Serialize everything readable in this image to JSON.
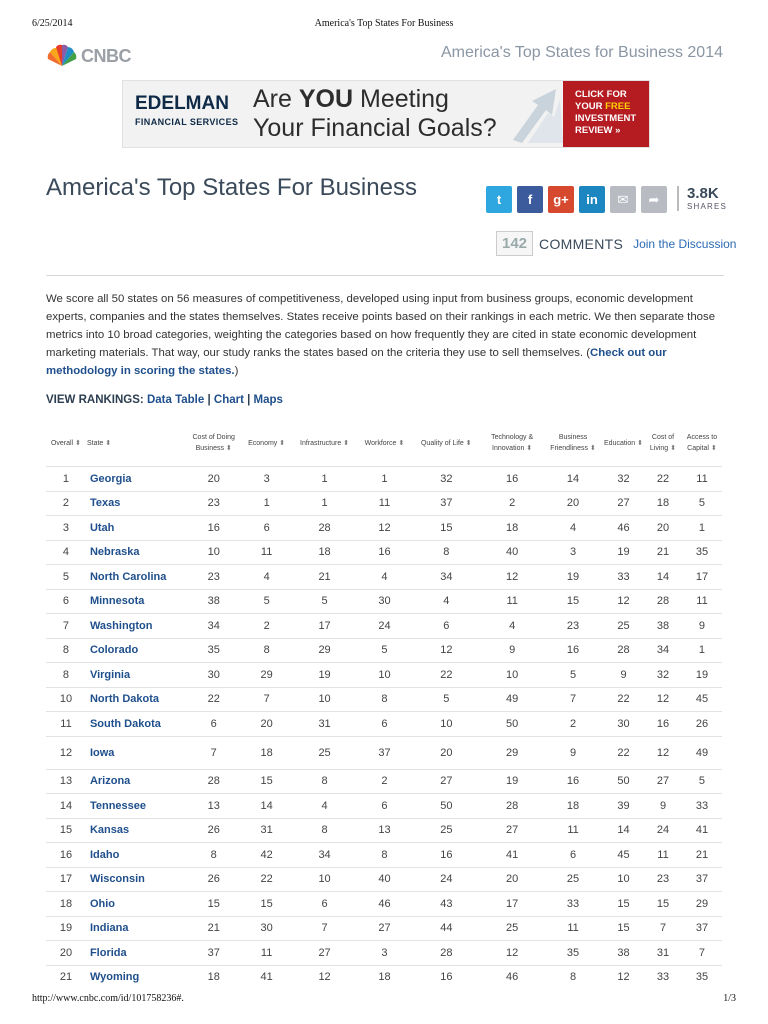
{
  "print_header": {
    "date": "6/25/2014",
    "title": "America's Top States For Business"
  },
  "print_footer": {
    "url": "http://www.cnbc.com/id/101758236#.",
    "page": "1/3"
  },
  "logo": {
    "text": "CNBC"
  },
  "site_title": "America's Top States for Business 2014",
  "ad": {
    "brand": "EDELMAN",
    "brand_sub": "FINANCIAL SERVICES",
    "headline_pre": "Are ",
    "headline_bold": "YOU",
    "headline_post": " Meeting",
    "headline_line2": "Your Financial Goals?",
    "cta_line1": "CLICK FOR",
    "cta_line2_pre": "YOUR ",
    "cta_line2_hl": "FREE",
    "cta_line3": "INVESTMENT",
    "cta_line4": "REVIEW »"
  },
  "article": {
    "headline": "America's Top States For Business",
    "shares_count": "3.8K",
    "shares_label": "SHARES",
    "comments_count": "142",
    "comments_label": "COMMENTS",
    "comments_link": "Join the Discussion",
    "intro_text": "We score all 50 states on 56 measures of competitiveness, developed using input from business groups, economic development experts, companies and the states themselves. States receive points based on their rankings in each metric. We then separate those metrics into 10 broad categories, weighting the categories based on how frequently they are cited in state economic development marketing materials. That way, our study ranks the states based on the criteria they use to sell themselves. (",
    "intro_link": "Check out our methodology in scoring the states.",
    "intro_end": ")"
  },
  "social": [
    {
      "name": "twitter",
      "glyph": "t",
      "color": "#2ea7e0"
    },
    {
      "name": "facebook",
      "glyph": "f",
      "color": "#3b5b9c"
    },
    {
      "name": "google-plus",
      "glyph": "g+",
      "color": "#d6492f"
    },
    {
      "name": "linkedin",
      "glyph": "in",
      "color": "#1b86bf"
    },
    {
      "name": "email",
      "glyph": "✉",
      "color": "#b8bcc2"
    },
    {
      "name": "share",
      "glyph": "➦",
      "color": "#b8bcc2"
    }
  ],
  "view_rankings": {
    "label": "VIEW RANKINGS:",
    "data_table": "Data Table",
    "chart": "Chart",
    "maps": "Maps",
    "sep": "|"
  },
  "table": {
    "headers": [
      "Overall",
      "State",
      "Cost of Doing Business",
      "Economy",
      "Infrastructure",
      "Workforce",
      "Quality of Life",
      "Technology & Innovation",
      "Business Friendliness",
      "Education",
      "Cost of Living",
      "Access to Capital"
    ],
    "rows": [
      [
        "1",
        "Georgia",
        "20",
        "3",
        "1",
        "1",
        "32",
        "16",
        "14",
        "32",
        "22",
        "11"
      ],
      [
        "2",
        "Texas",
        "23",
        "1",
        "1",
        "11",
        "37",
        "2",
        "20",
        "27",
        "18",
        "5"
      ],
      [
        "3",
        "Utah",
        "16",
        "6",
        "28",
        "12",
        "15",
        "18",
        "4",
        "46",
        "20",
        "1"
      ],
      [
        "4",
        "Nebraska",
        "10",
        "11",
        "18",
        "16",
        "8",
        "40",
        "3",
        "19",
        "21",
        "35"
      ],
      [
        "5",
        "North Carolina",
        "23",
        "4",
        "21",
        "4",
        "34",
        "12",
        "19",
        "33",
        "14",
        "17"
      ],
      [
        "6",
        "Minnesota",
        "38",
        "5",
        "5",
        "30",
        "4",
        "11",
        "15",
        "12",
        "28",
        "11"
      ],
      [
        "7",
        "Washington",
        "34",
        "2",
        "17",
        "24",
        "6",
        "4",
        "23",
        "25",
        "38",
        "9"
      ],
      [
        "8",
        "Colorado",
        "35",
        "8",
        "29",
        "5",
        "12",
        "9",
        "16",
        "28",
        "34",
        "1"
      ],
      [
        "8",
        "Virginia",
        "30",
        "29",
        "19",
        "10",
        "22",
        "10",
        "5",
        "9",
        "32",
        "19"
      ],
      [
        "10",
        "North Dakota",
        "22",
        "7",
        "10",
        "8",
        "5",
        "49",
        "7",
        "22",
        "12",
        "45"
      ],
      [
        "11",
        "South Dakota",
        "6",
        "20",
        "31",
        "6",
        "10",
        "50",
        "2",
        "30",
        "16",
        "26"
      ],
      [
        "12",
        "Iowa",
        "7",
        "18",
        "25",
        "37",
        "20",
        "29",
        "9",
        "22",
        "12",
        "49"
      ],
      [
        "13",
        "Arizona",
        "28",
        "15",
        "8",
        "2",
        "27",
        "19",
        "16",
        "50",
        "27",
        "5"
      ],
      [
        "14",
        "Tennessee",
        "13",
        "14",
        "4",
        "6",
        "50",
        "28",
        "18",
        "39",
        "9",
        "33"
      ],
      [
        "15",
        "Kansas",
        "26",
        "31",
        "8",
        "13",
        "25",
        "27",
        "11",
        "14",
        "24",
        "41"
      ],
      [
        "16",
        "Idaho",
        "8",
        "42",
        "34",
        "8",
        "16",
        "41",
        "6",
        "45",
        "11",
        "21"
      ],
      [
        "17",
        "Wisconsin",
        "26",
        "22",
        "10",
        "40",
        "24",
        "20",
        "25",
        "10",
        "23",
        "37"
      ],
      [
        "18",
        "Ohio",
        "15",
        "15",
        "6",
        "46",
        "43",
        "17",
        "33",
        "15",
        "15",
        "29"
      ],
      [
        "19",
        "Indiana",
        "21",
        "30",
        "7",
        "27",
        "44",
        "25",
        "11",
        "15",
        "7",
        "37"
      ],
      [
        "20",
        "Florida",
        "37",
        "11",
        "27",
        "3",
        "28",
        "12",
        "35",
        "38",
        "31",
        "7"
      ],
      [
        "21",
        "Wyoming",
        "18",
        "41",
        "12",
        "18",
        "16",
        "46",
        "8",
        "12",
        "33",
        "35"
      ]
    ]
  }
}
